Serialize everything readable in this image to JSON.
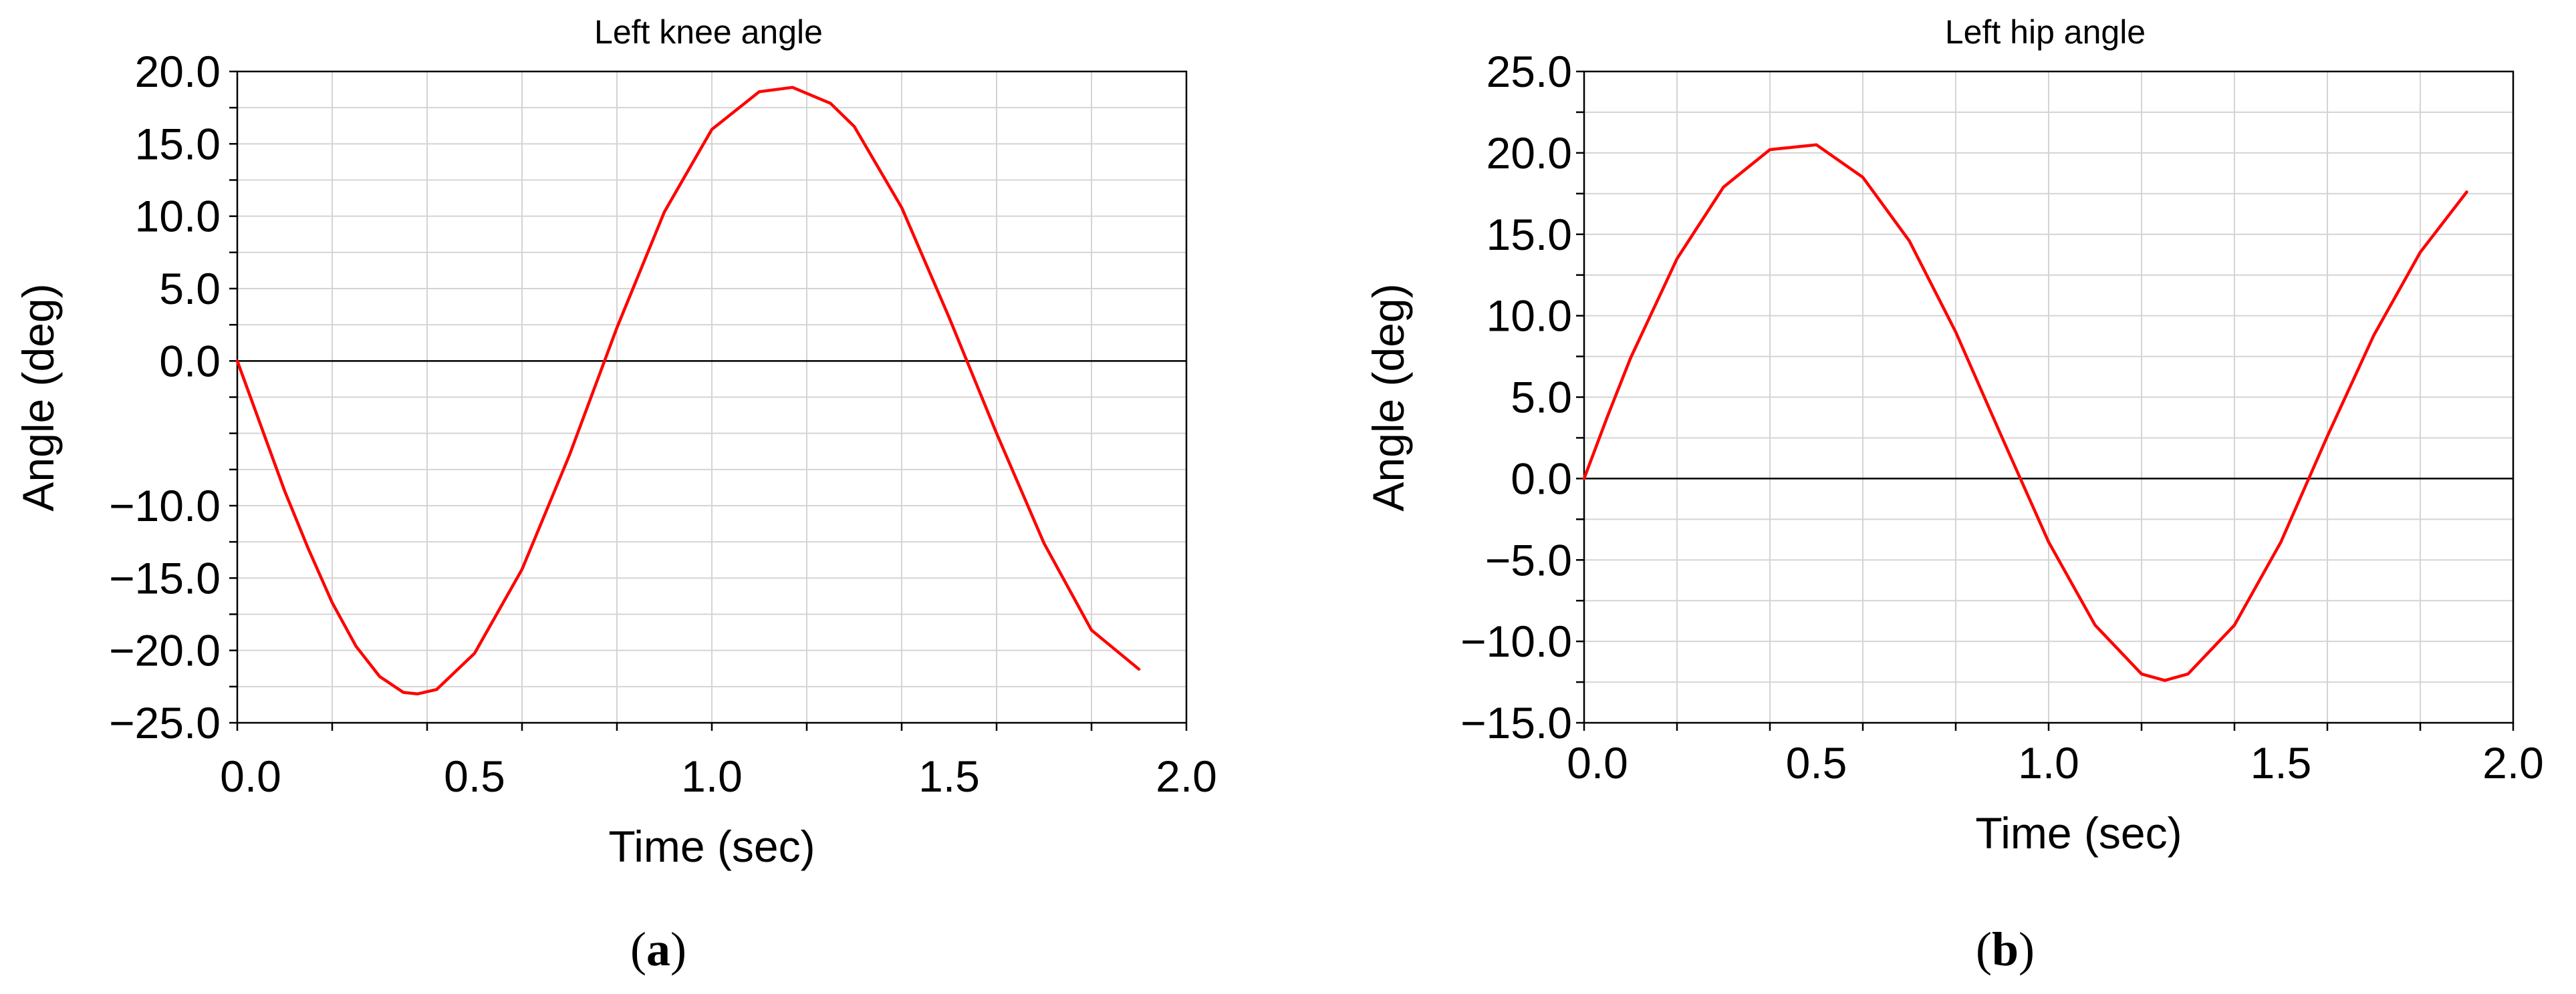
{
  "chart_data": [
    {
      "type": "line",
      "panel_label": "(a)",
      "panel_letter": "a",
      "title": "Left knee angle",
      "xlabel": "Time (sec)",
      "ylabel": "Angle (deg)",
      "xlim": [
        0.0,
        2.0
      ],
      "ylim": [
        -25.0,
        20.0
      ],
      "x_ticks": [
        0.0,
        0.5,
        1.0,
        1.5,
        2.0
      ],
      "x_tick_labels": [
        "0.0",
        "0.5",
        "1.0",
        "1.5",
        "2.0"
      ],
      "y_ticks": [
        20.0,
        15.0,
        10.0,
        5.0,
        0.0,
        -10.0,
        -15.0,
        -20.0,
        -25.0
      ],
      "y_tick_labels": [
        "20.0",
        "15.0",
        "10.0",
        "5.0",
        "0.0",
        "−10.0",
        "−15.0",
        "−20.0",
        "−25.0"
      ],
      "grid": true,
      "zero_line": true,
      "line_color": "#ff0000",
      "series": [
        {
          "x": [
            0.0,
            0.05,
            0.1,
            0.15,
            0.2,
            0.25,
            0.3,
            0.35,
            0.38,
            0.42,
            0.5,
            0.6,
            0.7,
            0.8,
            0.9,
            1.0,
            1.1,
            1.17,
            1.25,
            1.3,
            1.4,
            1.5,
            1.6,
            1.7,
            1.8,
            1.9
          ],
          "y": [
            0.0,
            -4.5,
            -9.0,
            -13.0,
            -16.7,
            -19.7,
            -21.8,
            -22.9,
            -23.0,
            -22.7,
            -20.2,
            -14.4,
            -6.5,
            2.3,
            10.3,
            16.0,
            18.6,
            18.9,
            17.8,
            16.2,
            10.6,
            3.0,
            -5.0,
            -12.6,
            -18.6,
            -21.3
          ]
        }
      ]
    },
    {
      "type": "line",
      "panel_label": "(b)",
      "panel_letter": "b",
      "title": "Left hip angle",
      "xlabel": "Time (sec)",
      "ylabel": "Angle (deg)",
      "xlim": [
        0.0,
        2.0
      ],
      "ylim": [
        -15.0,
        25.0
      ],
      "x_ticks": [
        0.0,
        0.5,
        1.0,
        1.5,
        2.0
      ],
      "x_tick_labels": [
        "0.0",
        "0.5",
        "1.0",
        "1.5",
        "2.0"
      ],
      "y_ticks": [
        25.0,
        20.0,
        15.0,
        10.0,
        5.0,
        0.0,
        -5.0,
        -10.0,
        -15.0
      ],
      "y_tick_labels": [
        "25.0",
        "20.0",
        "15.0",
        "10.0",
        "5.0",
        "0.0",
        "−5.0",
        "−10.0",
        "−15.0"
      ],
      "grid": true,
      "zero_line": true,
      "line_color": "#ff0000",
      "series": [
        {
          "x": [
            0.0,
            0.05,
            0.1,
            0.2,
            0.3,
            0.4,
            0.5,
            0.6,
            0.7,
            0.8,
            0.9,
            0.95,
            1.0,
            1.1,
            1.2,
            1.25,
            1.3,
            1.4,
            1.5,
            1.56,
            1.6,
            1.7,
            1.8,
            1.9
          ],
          "y": [
            0.0,
            3.8,
            7.4,
            13.5,
            17.9,
            20.2,
            20.5,
            18.5,
            14.6,
            9.0,
            2.5,
            -0.7,
            -3.9,
            -9.0,
            -12.0,
            -12.4,
            -12.0,
            -9.0,
            -3.9,
            0.0,
            2.6,
            8.8,
            13.9,
            17.6
          ]
        }
      ]
    }
  ]
}
